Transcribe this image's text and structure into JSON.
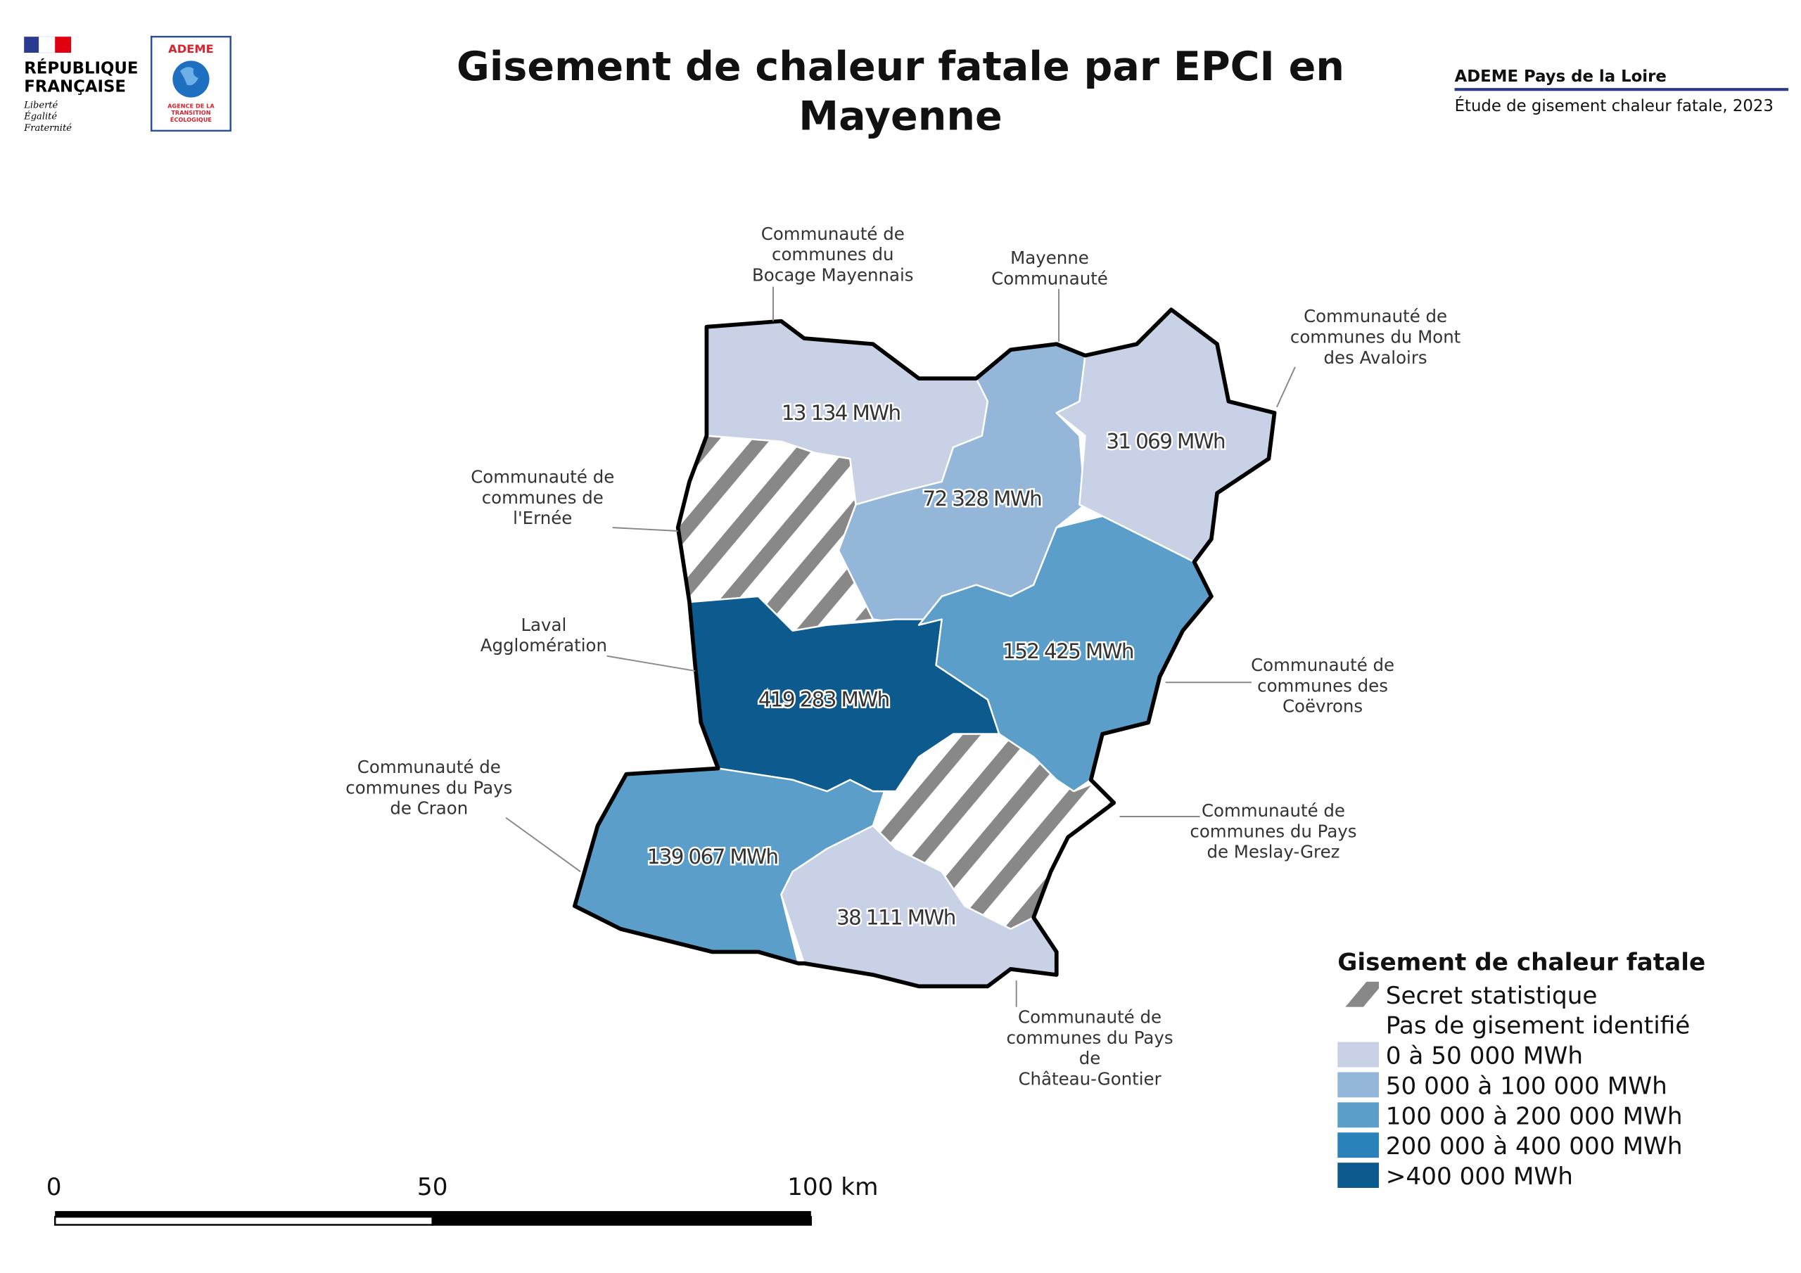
{
  "header": {
    "republic": [
      "RÉPUBLIQUE",
      "FRANÇAISE"
    ],
    "motto": [
      "Liberté",
      "Égalité",
      "Fraternité"
    ],
    "agency": "ADEME",
    "agency_subtitle": [
      "AGENCE DE LA",
      "TRANSITION",
      "ÉCOLOGIQUE"
    ]
  },
  "title": [
    "Gisement de chaleur fatale par EPCI en",
    "Mayenne"
  ],
  "source": {
    "organization": "ADEME Pays de la Loire",
    "study": "Étude de gisement chaleur fatale, 2023"
  },
  "regions": [
    {
      "name": [
        "Communauté de",
        "communes du",
        "Bocage Mayennais"
      ],
      "value": "13 134 MWh",
      "fill": "#c8d1e6"
    },
    {
      "name": [
        "Mayenne",
        "Communauté"
      ],
      "value": "72 328 MWh",
      "fill": "#94b6d8"
    },
    {
      "name": [
        "Communauté de",
        "communes du Mont",
        "des  Avaloirs"
      ],
      "value": "31 069 MWh",
      "fill": "#c8d1e6"
    },
    {
      "name": [
        "Communauté de",
        "communes de",
        "l'Ernée"
      ],
      "value": null,
      "fill": "hatch"
    },
    {
      "name": [
        "Laval",
        "Agglomération"
      ],
      "value": "419 283 MWh",
      "fill": "#0c5a8e"
    },
    {
      "name": [
        "Communauté de",
        "communes des",
        "Coëvrons"
      ],
      "value": "152 425 MWh",
      "fill": "#5b9ec9"
    },
    {
      "name": [
        "Communauté de",
        "communes du Pays",
        "de Meslay-Grez"
      ],
      "value": null,
      "fill": "hatch"
    },
    {
      "name": [
        "Communauté de",
        "communes du Pays",
        "de Craon"
      ],
      "value": "139 067 MWh",
      "fill": "#5b9ec9"
    },
    {
      "name": [
        "Communauté de",
        "communes du Pays",
        "de",
        "Château-Gontier"
      ],
      "value": "38 111 MWh",
      "fill": "#c8d1e6"
    }
  ],
  "legend": {
    "title": "Gisement de chaleur fatale",
    "items": [
      {
        "label": "Secret statistique",
        "fill": "hatch"
      },
      {
        "label": "Pas de gisement identifié",
        "fill": "#ffffff"
      },
      {
        "label": "0 à 50 000 MWh",
        "fill": "#c8d1e6"
      },
      {
        "label": "50 000 à 100 000 MWh",
        "fill": "#94b6d8"
      },
      {
        "label": "100 000 à 200 000 MWh",
        "fill": "#5b9ec9"
      },
      {
        "label": "200 000 à 400 000 MWh",
        "fill": "#2a82ba"
      },
      {
        "label": ">400 000 MWh",
        "fill": "#0c5a8e"
      }
    ]
  },
  "scale_bar": {
    "labels": [
      "0",
      "50",
      "100 km"
    ]
  }
}
